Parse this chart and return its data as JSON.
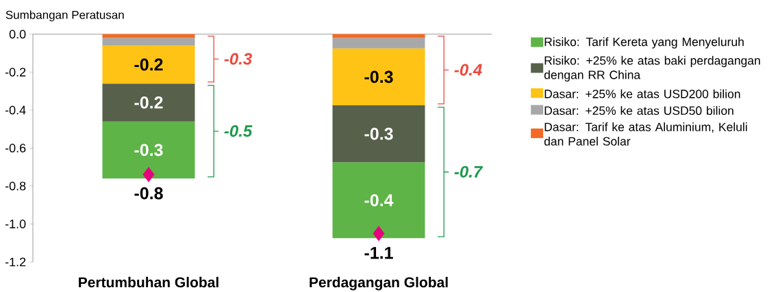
{
  "chart_data": {
    "type": "bar",
    "stacked": true,
    "ylabel": "Sumbangan Peratusan",
    "categories": [
      "Pertumbuhan Global",
      "Perdagangan Global"
    ],
    "ylim": [
      -1.2,
      0
    ],
    "yticks": [
      {
        "value": 0,
        "label": "0.0"
      },
      {
        "value": -0.2,
        "label": "-0.2"
      },
      {
        "value": -0.4,
        "label": "-0.4"
      },
      {
        "value": -0.6,
        "label": "-0.6"
      },
      {
        "value": -0.8,
        "label": "-0.8"
      },
      {
        "value": -1.0,
        "label": "-1.0"
      },
      {
        "value": -1.2,
        "label": "-1.2"
      }
    ],
    "legend": "right",
    "series": [
      {
        "name": "Dasar: Tarif ke atas Aluminium, Keluli dan Panel Solar",
        "color": "#f26a25",
        "values": [
          -0.02,
          -0.02
        ]
      },
      {
        "name": "Dasar: +25% ke atas USD50 bilion",
        "color": "#a7a8aa",
        "values": [
          -0.04,
          -0.055
        ]
      },
      {
        "name": "Dasar: +25% ke atas USD200 bilion",
        "color": "#fec314",
        "values": [
          -0.2,
          -0.3
        ],
        "value_labels": [
          "-0.2",
          "-0.3"
        ]
      },
      {
        "name": "Risiko: +25% ke atas baki perdagangan dengan RR China",
        "color": "#57604a",
        "values": [
          -0.2,
          -0.3
        ],
        "value_labels": [
          "-0.2",
          "-0.3"
        ]
      },
      {
        "name": "Risiko: Tarif Kereta yang Menyeluruh",
        "color": "#5eb447",
        "values": [
          -0.3,
          -0.4
        ],
        "value_labels": [
          "-0.3",
          "-0.4"
        ]
      },
      {
        "type": "scatter",
        "color": "#e6007e",
        "marker": "diamond",
        "x": [
          "Pertumbuhan Global",
          "Perdagangan Global"
        ],
        "values": [
          -0.74,
          -1.05
        ]
      }
    ],
    "totals": [
      "-0.8",
      "-1.1"
    ],
    "annotations": [
      "-0.3",
      "-0.5",
      "-0.4",
      "-0.7"
    ]
  }
}
